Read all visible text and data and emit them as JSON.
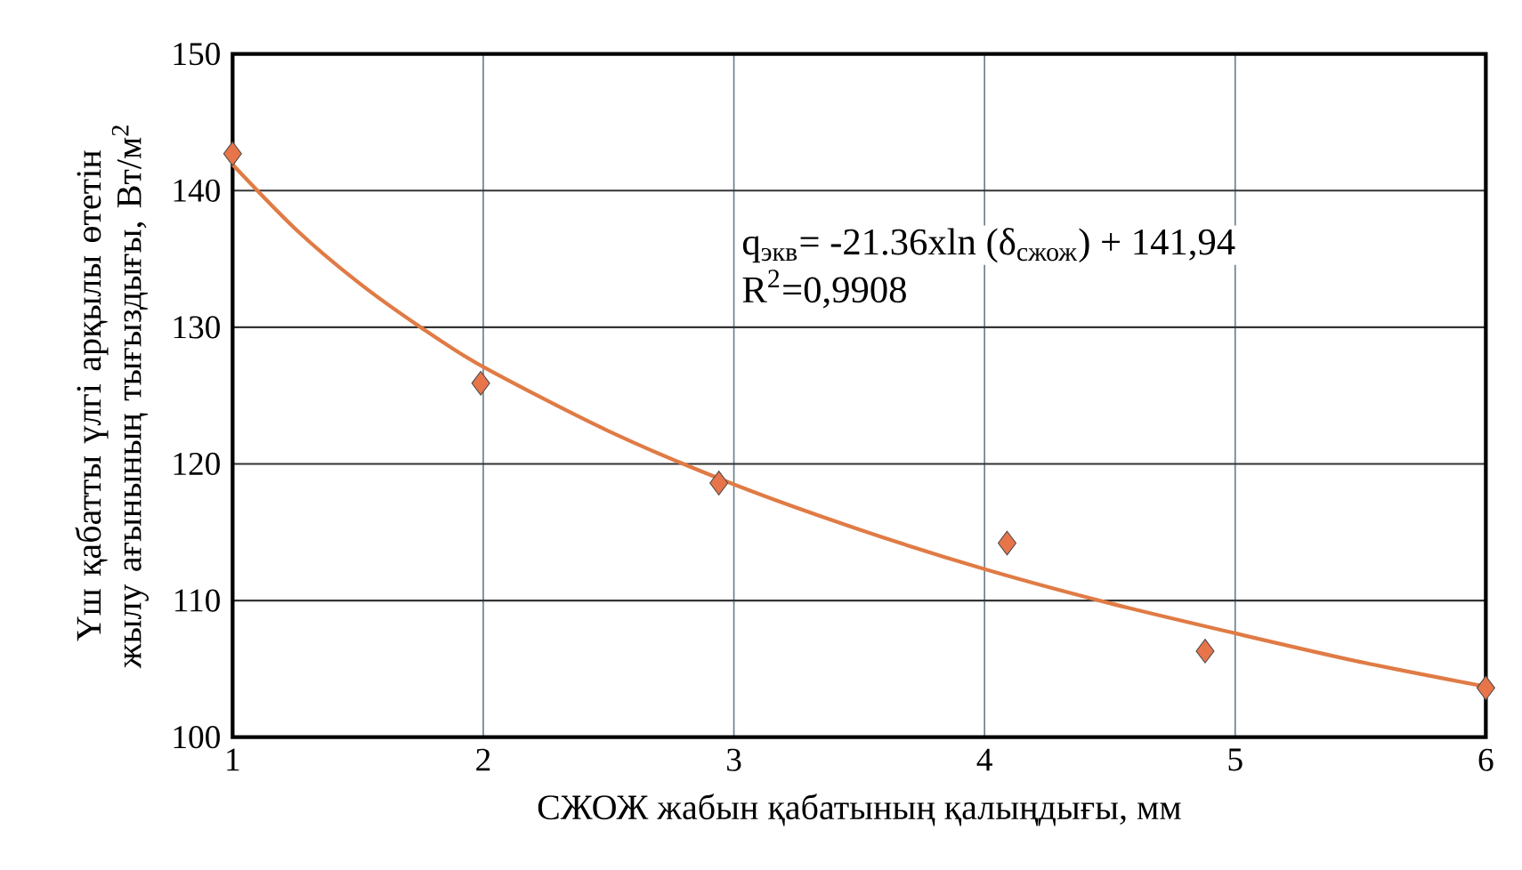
{
  "chart_data": {
    "type": "scatter",
    "xlabel": "СЖОЖ жабын қабатының қалыңдығы, мм",
    "ylabel": "Үш қабатты үлгі арқылы өтетін жылу ағынының тығыздығы, Вт/м$^{2}$",
    "series": [
      {
        "color": "#e8744a",
        "marker": "diamond",
        "x": [
          1,
          1.99,
          2.94,
          4.09,
          4.88,
          6
        ],
        "values": [
          142.7,
          125.9,
          118.6,
          114.2,
          106.3,
          103.6
        ]
      },
      {
        "type": "line",
        "color": "#e07b45",
        "marker": "none",
        "x": [
          1,
          1.25,
          1.5,
          1.75,
          2,
          2.5,
          3,
          3.5,
          4,
          4.5,
          5,
          5.5,
          6
        ],
        "values": [
          141.9,
          137.2,
          133.3,
          130.0,
          127.1,
          122.4,
          118.5,
          115.2,
          112.3,
          109.8,
          107.6,
          105.5,
          103.7
        ]
      }
    ],
    "annotations": [
      "q$_{экв}$= -21.36xln (δ$_{сжож}$) + 141,94",
      "R$^{2}$=0,9908"
    ],
    "xlim": [
      1,
      6
    ],
    "ylim": [
      100,
      150
    ],
    "xticks": [
      1,
      2,
      3,
      4,
      5,
      6
    ],
    "yticks": [
      100,
      110,
      120,
      130,
      140,
      150
    ],
    "grid": true
  }
}
